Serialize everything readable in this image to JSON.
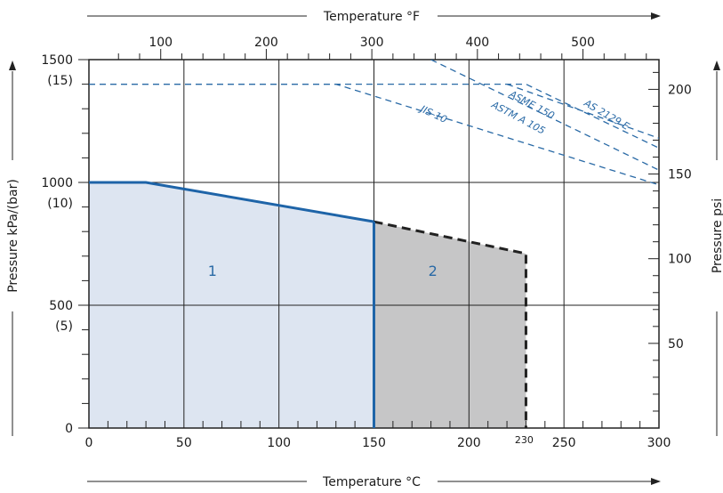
{
  "chart_data": {
    "type": "area",
    "title": "",
    "x_axis_bottom": {
      "title": "Temperature °C",
      "range": [
        0,
        300
      ],
      "ticks": [
        {
          "value": 0,
          "label": "0"
        },
        {
          "value": 50,
          "label": "50"
        },
        {
          "value": 100,
          "label": "100"
        },
        {
          "value": 150,
          "label": "150"
        },
        {
          "value": 200,
          "label": "200"
        },
        {
          "value": 250,
          "label": "250"
        },
        {
          "value": 300,
          "label": "300"
        }
      ],
      "special_tick": {
        "value": 230,
        "label": "230"
      }
    },
    "x_axis_top": {
      "title": "Temperature °F",
      "ticks": [
        {
          "value": 100,
          "label": "100"
        },
        {
          "value": 200,
          "label": "200"
        },
        {
          "value": 300,
          "label": "300"
        },
        {
          "value": 400,
          "label": "400"
        },
        {
          "value": 500,
          "label": "500"
        }
      ]
    },
    "y_axis_left": {
      "title": "Pressure kPa/(bar)",
      "range": [
        0,
        1500
      ],
      "ticks": [
        {
          "value": 0,
          "label": "0",
          "sublabel": ""
        },
        {
          "value": 500,
          "label": "500",
          "sublabel": "(5)"
        },
        {
          "value": 1000,
          "label": "1000",
          "sublabel": "(10)"
        },
        {
          "value": 1500,
          "label": "1500",
          "sublabel": "(15)"
        }
      ]
    },
    "y_axis_right": {
      "title": "Pressure psi",
      "ticks": [
        {
          "value": 50,
          "label": "50"
        },
        {
          "value": 100,
          "label": "100"
        },
        {
          "value": 150,
          "label": "150"
        },
        {
          "value": 200,
          "label": "200"
        }
      ]
    },
    "grid": true,
    "regions": [
      {
        "name": "1",
        "label": "1",
        "color": "#dde5f1",
        "x_range": [
          0,
          150
        ]
      },
      {
        "name": "2",
        "label": "2",
        "color": "#c6c6c7",
        "x_range": [
          150,
          230
        ]
      }
    ],
    "series": [
      {
        "name": "region-1-limit",
        "style": "solid",
        "color": "#1e64a8",
        "points": [
          [
            0,
            1000
          ],
          [
            30,
            1000
          ],
          [
            150,
            840
          ]
        ]
      },
      {
        "name": "region-2-limit",
        "style": "dashed",
        "color": "#222222",
        "points": [
          [
            150,
            840
          ],
          [
            230,
            710
          ],
          [
            230,
            0
          ]
        ]
      },
      {
        "name": "JIS-10",
        "label": "JIS-10",
        "style": "dashed",
        "color": "#2a6aa6",
        "points": [
          [
            0,
            1400
          ],
          [
            130,
            1400
          ],
          [
            300,
            990
          ]
        ]
      },
      {
        "name": "ASME 150",
        "label": "ASME 150",
        "style": "dashed",
        "color": "#2a6aa6",
        "points": [
          [
            180,
            1500
          ],
          [
            300,
            1050
          ]
        ]
      },
      {
        "name": "ASTM A 105",
        "label": "ASTM A 105",
        "style": "dashed",
        "color": "#2a6aa6",
        "points": [
          [
            0,
            1400
          ],
          [
            230,
            1400
          ],
          [
            300,
            1140
          ]
        ]
      },
      {
        "name": "AS 2129 E",
        "label": "AS 2129 E",
        "style": "dashed",
        "color": "#2a6aa6",
        "points": []
      }
    ]
  }
}
